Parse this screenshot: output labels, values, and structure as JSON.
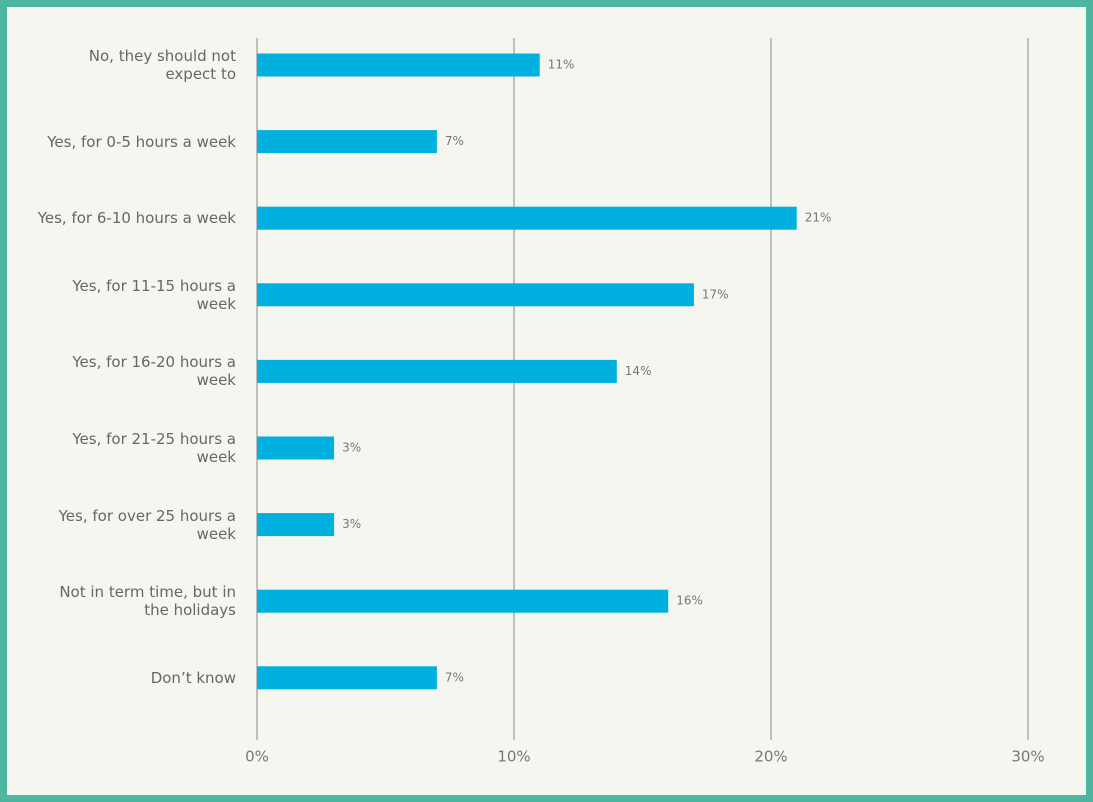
{
  "chart_data": {
    "type": "bar",
    "orientation": "horizontal",
    "categories": [
      "No, they should not expect to",
      "Yes, for 0-5 hours a week",
      "Yes, for 6-10 hours a week",
      "Yes, for 11-15 hours a week",
      "Yes, for 16-20 hours a week",
      "Yes, for 21-25 hours a week",
      "Yes, for over 25 hours a week",
      "Not in term time, but in the holidays",
      "Don’t know"
    ],
    "values": [
      11,
      7,
      21,
      17,
      14,
      3,
      3,
      16,
      7
    ],
    "value_labels": [
      "11%",
      "7%",
      "21%",
      "17%",
      "14%",
      "3%",
      "3%",
      "16%",
      "7%"
    ],
    "color": "#00b0de",
    "xlim": [
      0,
      30
    ],
    "xticks": [
      {
        "value": 0,
        "label": "0%"
      },
      {
        "value": 10,
        "label": "10%"
      },
      {
        "value": 20,
        "label": "20%"
      },
      {
        "value": 30,
        "label": "30%"
      }
    ],
    "grid": true
  }
}
